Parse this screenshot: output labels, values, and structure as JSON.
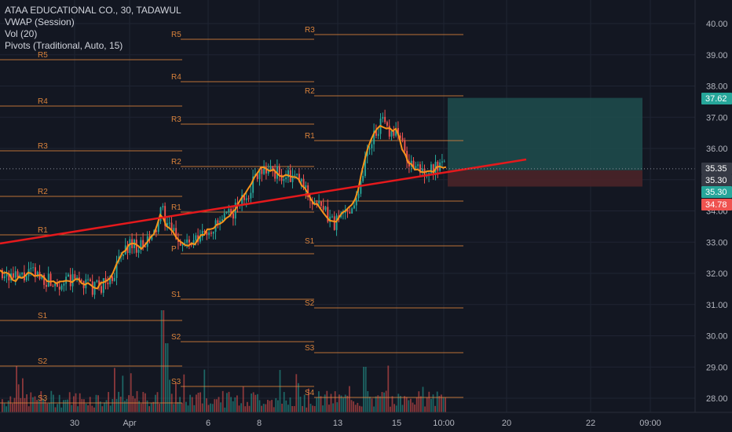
{
  "legend": {
    "symbol": "ATAA EDUCATIONAL CO., 30, TADAWUL",
    "vwap": "VWAP (Session)",
    "vol": "Vol (20)",
    "pivots": "Pivots (Traditional, Auto, 15)"
  },
  "colors": {
    "background": "#131722",
    "up": "#26a69a",
    "down": "#ef5350",
    "vwap": "#f7931a",
    "pivot": "#d9823b",
    "trendline": "#e5191c",
    "target_zone": "#1e4d4d",
    "stop_zone": "#4a2328",
    "grid": "#1f2433"
  },
  "price_axis": {
    "ticks": [
      "28.00",
      "29.00",
      "30.00",
      "31.00",
      "32.00",
      "33.00",
      "34.00",
      "35.00",
      "36.00",
      "37.00",
      "38.00",
      "39.00",
      "40.00"
    ],
    "badges": [
      {
        "label": "37.62",
        "value": 37.62,
        "color": "#26a69a"
      },
      {
        "label": "35.35",
        "value": 35.35,
        "color": "#363a45"
      },
      {
        "label": "35.30",
        "value": 35.3,
        "color": "#363a45"
      },
      {
        "label": "35.30",
        "value": 35.3,
        "color": "#26a69a"
      },
      {
        "label": "34.78",
        "value": 34.78,
        "color": "#ef5350"
      }
    ]
  },
  "time_axis": {
    "labels": [
      "30",
      "Apr",
      "6",
      "8",
      "13",
      "15",
      "10:00",
      "20",
      "22",
      "09:00"
    ]
  },
  "pivot_labels": [
    "R5",
    "R4",
    "R3",
    "R2",
    "R1",
    "P",
    "S1",
    "S2",
    "S3",
    "S4"
  ],
  "position_tool": {
    "entry": 35.3,
    "target": 37.62,
    "stop": 34.78
  }
}
